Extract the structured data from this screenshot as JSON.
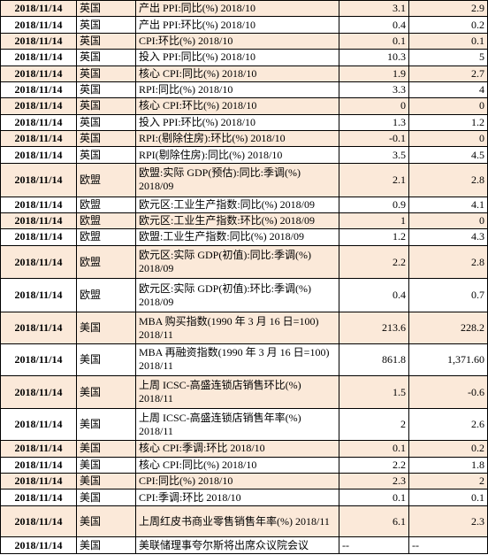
{
  "table": {
    "rows": [
      {
        "date": "2018/11/14",
        "country": "英国",
        "event": "产出 PPI:同比(%) 2018/10",
        "actual": "3.1",
        "previous": "2.9"
      },
      {
        "date": "2018/11/14",
        "country": "英国",
        "event": "产出 PPI:环比(%) 2018/10",
        "actual": "0.4",
        "previous": "0.2"
      },
      {
        "date": "2018/11/14",
        "country": "英国",
        "event": "CPI:环比(%) 2018/10",
        "actual": "0.1",
        "previous": "0.1"
      },
      {
        "date": "2018/11/14",
        "country": "英国",
        "event": "投入 PPI:同比(%) 2018/10",
        "actual": "10.3",
        "previous": "5"
      },
      {
        "date": "2018/11/14",
        "country": "英国",
        "event": "核心 CPI:同比(%) 2018/10",
        "actual": "1.9",
        "previous": "2.7"
      },
      {
        "date": "2018/11/14",
        "country": "英国",
        "event": "RPI:同比(%) 2018/10",
        "actual": "3.3",
        "previous": "4"
      },
      {
        "date": "2018/11/14",
        "country": "英国",
        "event": "核心 CPI:环比(%) 2018/10",
        "actual": "0",
        "previous": "0"
      },
      {
        "date": "2018/11/14",
        "country": "英国",
        "event": "投入 PPI:环比(%) 2018/10",
        "actual": "1.3",
        "previous": "1.2"
      },
      {
        "date": "2018/11/14",
        "country": "英国",
        "event": "RPI:(剔除住房):环比(%) 2018/10",
        "actual": "-0.1",
        "previous": "0"
      },
      {
        "date": "2018/11/14",
        "country": "英国",
        "event": "RPI(剔除住房):同比(%) 2018/10",
        "actual": "3.5",
        "previous": "4.5"
      },
      {
        "date": "2018/11/14",
        "country": "欧盟",
        "event": "欧盟:实际 GDP(预估):同比:季调(%) 2018/09",
        "actual": "2.1",
        "previous": "2.8"
      },
      {
        "date": "2018/11/14",
        "country": "欧盟",
        "event": "欧元区:工业生产指数:同比(%) 2018/09",
        "actual": "0.9",
        "previous": "4.1"
      },
      {
        "date": "2018/11/14",
        "country": "欧盟",
        "event": "欧元区:工业生产指数:环比(%) 2018/09",
        "actual": "1",
        "previous": "0"
      },
      {
        "date": "2018/11/14",
        "country": "欧盟",
        "event": "欧盟:工业生产指数:同比(%) 2018/09",
        "actual": "1.2",
        "previous": "4.3"
      },
      {
        "date": "2018/11/14",
        "country": "欧盟",
        "event": "欧元区:实际 GDP(初值):同比:季调(%) 2018/09",
        "actual": "2.2",
        "previous": "2.8"
      },
      {
        "date": "2018/11/14",
        "country": "欧盟",
        "event": "欧元区:实际 GDP(初值):环比:季调(%) 2018/09",
        "actual": "0.4",
        "previous": "0.7"
      },
      {
        "date": "2018/11/14",
        "country": "美国",
        "event": "MBA 购买指数(1990 年 3 月 16 日=100) 2018/11",
        "actual": "213.6",
        "previous": "228.2"
      },
      {
        "date": "2018/11/14",
        "country": "美国",
        "event": "MBA 再融资指数(1990 年 3 月 16 日=100) 2018/11",
        "actual": "861.8",
        "previous": "1,371.60"
      },
      {
        "date": "2018/11/14",
        "country": "美国",
        "event": "上周 ICSC-高盛连锁店销售环比(%) 2018/11",
        "actual": "1.5",
        "previous": "-0.6"
      },
      {
        "date": "2018/11/14",
        "country": "美国",
        "event": "上周 ICSC-高盛连锁店销售年率(%) 2018/11",
        "actual": "2",
        "previous": "2.6"
      },
      {
        "date": "2018/11/14",
        "country": "美国",
        "event": "核心 CPI:季调:环比 2018/10",
        "actual": "0.1",
        "previous": "0.2"
      },
      {
        "date": "2018/11/14",
        "country": "美国",
        "event": "核心 CPI:同比(%) 2018/10",
        "actual": "2.2",
        "previous": "1.8"
      },
      {
        "date": "2018/11/14",
        "country": "美国",
        "event": "CPI:同比(%) 2018/10",
        "actual": "2.3",
        "previous": "2"
      },
      {
        "date": "2018/11/14",
        "country": "美国",
        "event": "CPI:季调:环比 2018/10",
        "actual": "0.1",
        "previous": "0.1"
      },
      {
        "date": "2018/11/14",
        "country": "美国",
        "event": "上周红皮书商业零售销售年率(%) 2018/11",
        "actual": "6.1",
        "previous": "2.3"
      },
      {
        "date": "2018/11/14",
        "country": "美国",
        "event": "美联储理事夸尔斯将出席众议院会议",
        "actual": "--",
        "previous": "--"
      }
    ]
  },
  "colors": {
    "stripe": "#fbe9d9",
    "plain": "#ffffff",
    "border": "#000000"
  }
}
